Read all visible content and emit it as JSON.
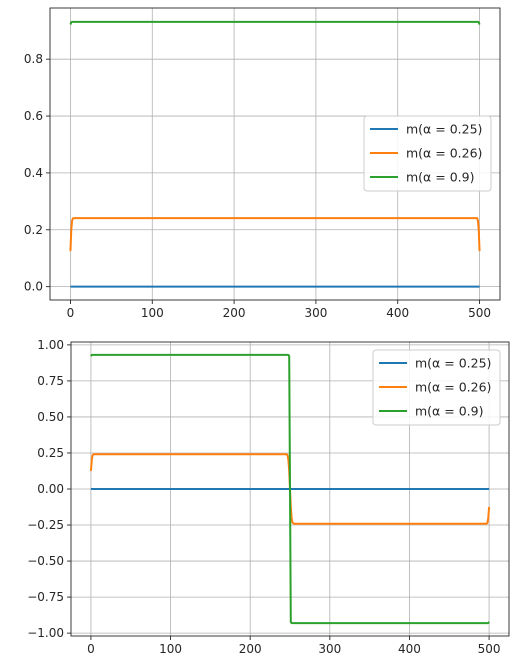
{
  "chart_data": [
    {
      "type": "line",
      "grid": true,
      "legend_position": "center-right",
      "xlim": [
        -25,
        525
      ],
      "ylim": [
        -0.047,
        0.98
      ],
      "xticks": [
        0,
        100,
        200,
        300,
        400,
        500
      ],
      "xtick_labels": [
        "0",
        "100",
        "200",
        "300",
        "400",
        "500"
      ],
      "yticks": [
        0.0,
        0.2,
        0.4,
        0.6,
        0.8
      ],
      "ytick_labels": [
        "0.0",
        "0.2",
        "0.4",
        "0.6",
        "0.8"
      ],
      "series": [
        {
          "name": "m(α = 0.25)",
          "color": "#1f77b4",
          "x": [
            0,
            500
          ],
          "y": [
            0.0,
            0.0
          ]
        },
        {
          "name": "m(α = 0.26)",
          "color": "#ff7f0e",
          "x": [
            0,
            1,
            2,
            3,
            5,
            497,
            498,
            499,
            500
          ],
          "y": [
            0.125,
            0.2,
            0.232,
            0.24,
            0.241,
            0.241,
            0.232,
            0.2,
            0.125
          ]
        },
        {
          "name": "m(α = 0.9)",
          "color": "#2ca02c",
          "x": [
            0,
            1,
            2,
            498,
            499,
            500
          ],
          "y": [
            0.922,
            0.93,
            0.931,
            0.931,
            0.93,
            0.922
          ]
        }
      ]
    },
    {
      "type": "line",
      "grid": true,
      "legend_position": "upper-right",
      "xlim": [
        -25,
        525
      ],
      "ylim": [
        -1.02,
        1.02
      ],
      "xticks": [
        0,
        100,
        200,
        300,
        400,
        500
      ],
      "xtick_labels": [
        "0",
        "100",
        "200",
        "300",
        "400",
        "500"
      ],
      "yticks": [
        -1.0,
        -0.75,
        -0.5,
        -0.25,
        0.0,
        0.25,
        0.5,
        0.75,
        1.0
      ],
      "ytick_labels": [
        "−1.00",
        "−0.75",
        "−0.50",
        "−0.25",
        "0.00",
        "0.25",
        "0.50",
        "0.75",
        "1.00"
      ],
      "series": [
        {
          "name": "m(α = 0.25)",
          "color": "#1f77b4",
          "x": [
            0,
            500
          ],
          "y": [
            0.0,
            0.0
          ]
        },
        {
          "name": "m(α = 0.26)",
          "color": "#ff7f0e",
          "x": [
            0,
            1,
            2,
            3,
            5,
            246,
            247,
            248,
            249,
            250,
            251,
            252,
            253,
            255,
            497,
            498,
            499,
            500
          ],
          "y": [
            0.125,
            0.2,
            0.232,
            0.24,
            0.241,
            0.241,
            0.232,
            0.2,
            0.125,
            0.0,
            -0.125,
            -0.2,
            -0.232,
            -0.241,
            -0.241,
            -0.232,
            -0.2,
            -0.125
          ]
        },
        {
          "name": "m(α = 0.9)",
          "color": "#2ca02c",
          "x": [
            0,
            1,
            2,
            247,
            248,
            249,
            250,
            251,
            252,
            253,
            498,
            499,
            500
          ],
          "y": [
            0.922,
            0.93,
            0.931,
            0.931,
            0.93,
            0.922,
            0.0,
            -0.922,
            -0.93,
            -0.931,
            -0.931,
            -0.93,
            -0.922
          ]
        }
      ]
    }
  ]
}
